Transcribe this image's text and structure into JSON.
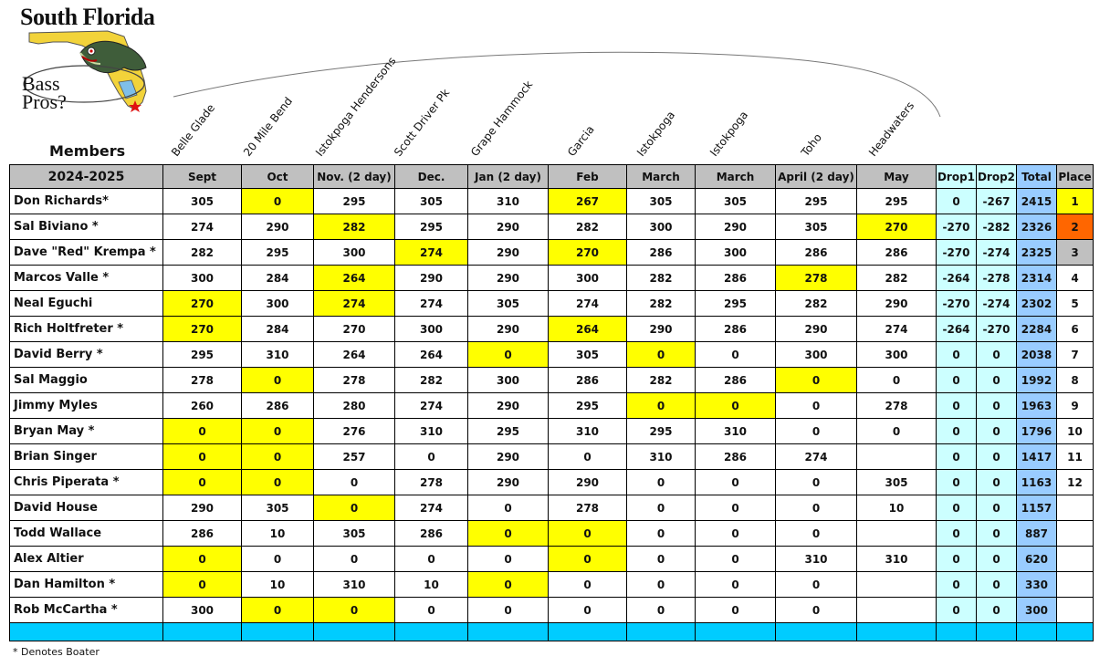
{
  "logo": {
    "title": "South Florida",
    "line1": "Bass",
    "line2": "Pros?"
  },
  "members_label": "Members",
  "season": "2024-2025",
  "venues": [
    "Belle Glade",
    "20 Mile Bend",
    "Istokpoga Hendersons",
    "Scott Driver Pk",
    "Grape Hammock",
    "Garcia",
    "Istokpoga",
    "Istokpoga",
    "Toho",
    "Headwaters"
  ],
  "months": [
    "Sept",
    "Oct",
    "Nov. (2 day)",
    "Dec.",
    "Jan (2 day)",
    "Feb",
    "March",
    "March",
    "April (2 day)",
    "May"
  ],
  "summary_headers": [
    "Drop1",
    "Drop2",
    "Total",
    "Place"
  ],
  "colors": {
    "highlight": "#ffff00",
    "header_gray": "#c0c0c0",
    "drop": "#ccffff",
    "total": "#99ccff",
    "first_place": "#ffff00",
    "second_place": "#ff6600",
    "third_place": "#c0c0c0",
    "footer_bar": "#00ccff"
  },
  "rows": [
    {
      "name": "Don Richards*",
      "scores": [
        "305",
        "0",
        "295",
        "305",
        "310",
        "267",
        "305",
        "305",
        "295",
        "295"
      ],
      "hl": [
        1,
        5
      ],
      "drop1": "0",
      "drop2": "-267",
      "total": "2415",
      "place": "1"
    },
    {
      "name": "Sal Biviano *",
      "scores": [
        "274",
        "290",
        "282",
        "295",
        "290",
        "282",
        "300",
        "290",
        "305",
        "270"
      ],
      "hl": [
        2,
        9
      ],
      "drop1": "-270",
      "drop2": "-282",
      "total": "2326",
      "place": "2"
    },
    {
      "name": "Dave \"Red\" Krempa *",
      "scores": [
        "282",
        "295",
        "300",
        "274",
        "290",
        "270",
        "286",
        "300",
        "286",
        "286"
      ],
      "hl": [
        3,
        5
      ],
      "drop1": "-270",
      "drop2": "-274",
      "total": "2325",
      "place": "3"
    },
    {
      "name": "Marcos Valle *",
      "scores": [
        "300",
        "284",
        "264",
        "290",
        "290",
        "300",
        "282",
        "286",
        "278",
        "282"
      ],
      "hl": [
        2,
        8
      ],
      "drop1": "-264",
      "drop2": "-278",
      "total": "2314",
      "place": "4"
    },
    {
      "name": "Neal Eguchi",
      "scores": [
        "270",
        "300",
        "274",
        "274",
        "305",
        "274",
        "282",
        "295",
        "282",
        "290"
      ],
      "hl": [
        0,
        2
      ],
      "drop1": "-270",
      "drop2": "-274",
      "total": "2302",
      "place": "5"
    },
    {
      "name": "Rich Holtfreter *",
      "scores": [
        "270",
        "284",
        "270",
        "300",
        "290",
        "264",
        "290",
        "286",
        "290",
        "274"
      ],
      "hl": [
        0,
        5
      ],
      "drop1": "-264",
      "drop2": "-270",
      "total": "2284",
      "place": "6"
    },
    {
      "name": "David Berry *",
      "scores": [
        "295",
        "310",
        "264",
        "264",
        "0",
        "305",
        "0",
        "0",
        "300",
        "300"
      ],
      "hl": [
        4,
        6
      ],
      "drop1": "0",
      "drop2": "0",
      "total": "2038",
      "place": "7"
    },
    {
      "name": "Sal Maggio",
      "scores": [
        "278",
        "0",
        "278",
        "282",
        "300",
        "286",
        "282",
        "286",
        "0",
        "0"
      ],
      "hl": [
        1,
        8
      ],
      "drop1": "0",
      "drop2": "0",
      "total": "1992",
      "place": "8"
    },
    {
      "name": "Jimmy Myles",
      "scores": [
        "260",
        "286",
        "280",
        "274",
        "290",
        "295",
        "0",
        "0",
        "0",
        "278"
      ],
      "hl": [
        6,
        7
      ],
      "drop1": "0",
      "drop2": "0",
      "total": "1963",
      "place": "9"
    },
    {
      "name": "Bryan May *",
      "scores": [
        "0",
        "0",
        "276",
        "310",
        "295",
        "310",
        "295",
        "310",
        "0",
        "0"
      ],
      "hl": [
        0,
        1
      ],
      "drop1": "0",
      "drop2": "0",
      "total": "1796",
      "place": "10"
    },
    {
      "name": "Brian Singer",
      "scores": [
        "0",
        "0",
        "257",
        "0",
        "290",
        "0",
        "310",
        "286",
        "274",
        ""
      ],
      "hl": [
        0,
        1
      ],
      "drop1": "0",
      "drop2": "0",
      "total": "1417",
      "place": "11"
    },
    {
      "name": "Chris Piperata *",
      "scores": [
        "0",
        "0",
        "0",
        "278",
        "290",
        "290",
        "0",
        "0",
        "0",
        "305"
      ],
      "hl": [
        0,
        1
      ],
      "drop1": "0",
      "drop2": "0",
      "total": "1163",
      "place": "12"
    },
    {
      "name": "David House",
      "scores": [
        "290",
        "305",
        "0",
        "274",
        "0",
        "278",
        "0",
        "0",
        "0",
        "10"
      ],
      "hl": [
        2
      ],
      "drop1": "0",
      "drop2": "0",
      "total": "1157",
      "place": ""
    },
    {
      "name": "Todd Wallace",
      "scores": [
        "286",
        "10",
        "305",
        "286",
        "0",
        "0",
        "0",
        "0",
        "0",
        ""
      ],
      "hl": [
        4,
        5
      ],
      "drop1": "0",
      "drop2": "0",
      "total": "887",
      "place": ""
    },
    {
      "name": "Alex Altier",
      "scores": [
        "0",
        "0",
        "0",
        "0",
        "0",
        "0",
        "0",
        "0",
        "310",
        "310"
      ],
      "hl": [
        0,
        5
      ],
      "drop1": "0",
      "drop2": "0",
      "total": "620",
      "place": ""
    },
    {
      "name": "Dan Hamilton *",
      "scores": [
        "0",
        "10",
        "310",
        "10",
        "0",
        "0",
        "0",
        "0",
        "0",
        ""
      ],
      "hl": [
        0,
        4
      ],
      "drop1": "0",
      "drop2": "0",
      "total": "330",
      "place": ""
    },
    {
      "name": "Rob McCartha *",
      "scores": [
        "300",
        "0",
        "0",
        "0",
        "0",
        "0",
        "0",
        "0",
        "0",
        ""
      ],
      "hl": [
        1,
        2
      ],
      "drop1": "0",
      "drop2": "0",
      "total": "300",
      "place": ""
    }
  ],
  "note": "* Denotes Boater"
}
